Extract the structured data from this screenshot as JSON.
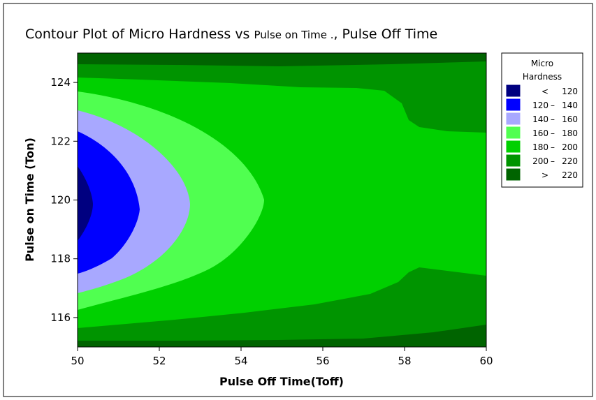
{
  "chart_data": {
    "type": "contour",
    "title": "Contour Plot of Micro Hardness vs Pulse on Time ., Pulse Off Time",
    "title_main": "Contour Plot of Micro Hardness vs ",
    "title_small": "Pulse on Time .",
    "title_tail": ", Pulse Off Time",
    "xlabel": "Pulse Off Time(Toff)",
    "ylabel": "Pulse on Time (Ton)",
    "xlim": [
      50,
      60
    ],
    "ylim": [
      115,
      125
    ],
    "x_ticks": [
      "50",
      "52",
      "54",
      "56",
      "58",
      "60"
    ],
    "y_ticks": [
      "116",
      "118",
      "120",
      "122",
      "124"
    ],
    "legend_position": "right",
    "legend": {
      "title_line1": "Micro",
      "title_line2": "Hardness",
      "entries": [
        {
          "low": "<",
          "high": "120",
          "dash": "",
          "color": "#000080"
        },
        {
          "low": "120",
          "high": "140",
          "dash": "–",
          "color": "#0000ff"
        },
        {
          "low": "140",
          "high": "160",
          "dash": "–",
          "color": "#a8a8ff"
        },
        {
          "low": "160",
          "high": "180",
          "dash": "–",
          "color": "#50ff50"
        },
        {
          "low": "180",
          "high": "200",
          "dash": "–",
          "color": "#00d000"
        },
        {
          "low": "200",
          "high": "220",
          "dash": "–",
          "color": "#009400"
        },
        {
          "low": ">",
          "high": "220",
          "dash": "",
          "color": "#006400"
        }
      ]
    },
    "bands": [
      {
        "range": "> 220",
        "color": "#006400"
      },
      {
        "range": "200 – 220",
        "color": "#009400"
      },
      {
        "range": "180 – 200",
        "color": "#00d000"
      },
      {
        "range": "160 – 180",
        "color": "#50ff50"
      },
      {
        "range": "140 – 160",
        "color": "#a8a8ff"
      },
      {
        "range": "120 – 140",
        "color": "#0000ff"
      },
      {
        "range": "< 120",
        "color": "#000080"
      }
    ]
  }
}
